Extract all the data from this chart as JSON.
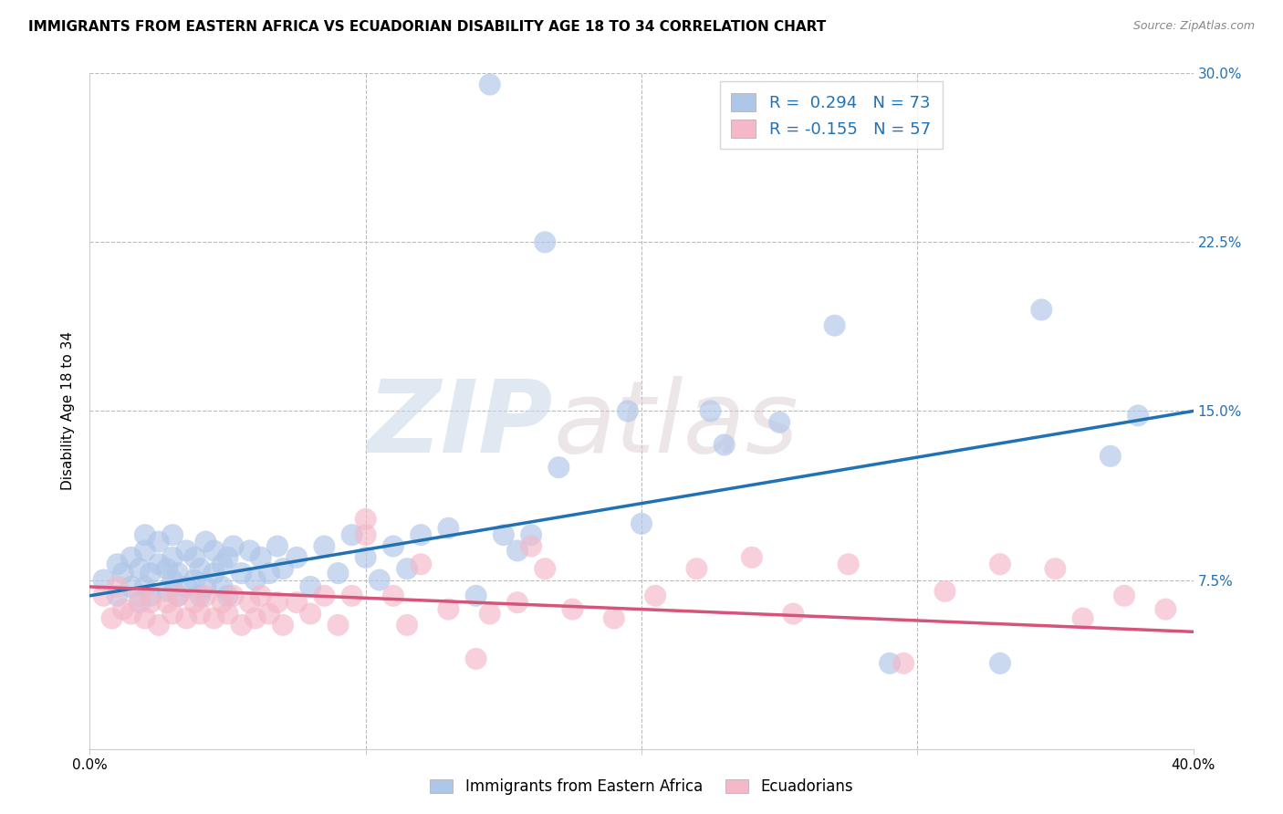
{
  "title": "IMMIGRANTS FROM EASTERN AFRICA VS ECUADORIAN DISABILITY AGE 18 TO 34 CORRELATION CHART",
  "source": "Source: ZipAtlas.com",
  "ylabel": "Disability Age 18 to 34",
  "xlim": [
    0.0,
    0.4
  ],
  "ylim": [
    0.0,
    0.3
  ],
  "blue_color": "#aec6e8",
  "blue_line_color": "#2171b5",
  "pink_color": "#f4b8c8",
  "pink_line_color": "#d6537a",
  "R_blue": 0.294,
  "N_blue": 73,
  "R_pink": -0.155,
  "N_pink": 57,
  "legend_label_blue": "Immigrants from Eastern Africa",
  "legend_label_pink": "Ecuadorians",
  "watermark": "ZIPatlas",
  "blue_line_y0": 0.068,
  "blue_line_y1": 0.15,
  "pink_line_y0": 0.072,
  "pink_line_y1": 0.052,
  "blue_scatter_x": [
    0.005,
    0.01,
    0.01,
    0.012,
    0.015,
    0.015,
    0.018,
    0.018,
    0.02,
    0.02,
    0.02,
    0.022,
    0.022,
    0.025,
    0.025,
    0.028,
    0.028,
    0.03,
    0.03,
    0.03,
    0.032,
    0.032,
    0.035,
    0.035,
    0.038,
    0.038,
    0.04,
    0.04,
    0.042,
    0.042,
    0.045,
    0.045,
    0.048,
    0.048,
    0.05,
    0.05,
    0.052,
    0.055,
    0.058,
    0.06,
    0.062,
    0.065,
    0.068,
    0.07,
    0.075,
    0.08,
    0.085,
    0.09,
    0.095,
    0.1,
    0.105,
    0.11,
    0.115,
    0.12,
    0.13,
    0.14,
    0.15,
    0.155,
    0.16,
    0.17,
    0.195,
    0.2,
    0.225,
    0.23,
    0.25,
    0.27,
    0.29,
    0.33,
    0.345,
    0.37,
    0.145,
    0.165,
    0.38
  ],
  "blue_scatter_y": [
    0.075,
    0.082,
    0.068,
    0.078,
    0.085,
    0.072,
    0.08,
    0.065,
    0.088,
    0.072,
    0.095,
    0.068,
    0.078,
    0.082,
    0.092,
    0.07,
    0.08,
    0.075,
    0.085,
    0.095,
    0.068,
    0.078,
    0.072,
    0.088,
    0.075,
    0.085,
    0.068,
    0.08,
    0.072,
    0.092,
    0.078,
    0.088,
    0.072,
    0.082,
    0.068,
    0.085,
    0.09,
    0.078,
    0.088,
    0.075,
    0.085,
    0.078,
    0.09,
    0.08,
    0.085,
    0.072,
    0.09,
    0.078,
    0.095,
    0.085,
    0.075,
    0.09,
    0.08,
    0.095,
    0.098,
    0.068,
    0.095,
    0.088,
    0.095,
    0.125,
    0.15,
    0.1,
    0.15,
    0.135,
    0.145,
    0.188,
    0.038,
    0.038,
    0.195,
    0.13,
    0.295,
    0.225,
    0.148
  ],
  "pink_scatter_x": [
    0.005,
    0.008,
    0.01,
    0.012,
    0.015,
    0.018,
    0.02,
    0.022,
    0.025,
    0.028,
    0.03,
    0.032,
    0.035,
    0.038,
    0.04,
    0.042,
    0.045,
    0.048,
    0.05,
    0.052,
    0.055,
    0.058,
    0.06,
    0.062,
    0.065,
    0.068,
    0.07,
    0.075,
    0.08,
    0.085,
    0.09,
    0.095,
    0.1,
    0.11,
    0.115,
    0.12,
    0.13,
    0.145,
    0.155,
    0.165,
    0.175,
    0.19,
    0.205,
    0.22,
    0.24,
    0.255,
    0.275,
    0.295,
    0.31,
    0.33,
    0.35,
    0.36,
    0.375,
    0.39,
    0.1,
    0.14,
    0.16
  ],
  "pink_scatter_y": [
    0.068,
    0.058,
    0.072,
    0.062,
    0.06,
    0.068,
    0.058,
    0.065,
    0.055,
    0.065,
    0.06,
    0.068,
    0.058,
    0.065,
    0.06,
    0.068,
    0.058,
    0.065,
    0.06,
    0.068,
    0.055,
    0.065,
    0.058,
    0.068,
    0.06,
    0.065,
    0.055,
    0.065,
    0.06,
    0.068,
    0.055,
    0.068,
    0.095,
    0.068,
    0.055,
    0.082,
    0.062,
    0.06,
    0.065,
    0.08,
    0.062,
    0.058,
    0.068,
    0.08,
    0.085,
    0.06,
    0.082,
    0.038,
    0.07,
    0.082,
    0.08,
    0.058,
    0.068,
    0.062,
    0.102,
    0.04,
    0.09
  ]
}
